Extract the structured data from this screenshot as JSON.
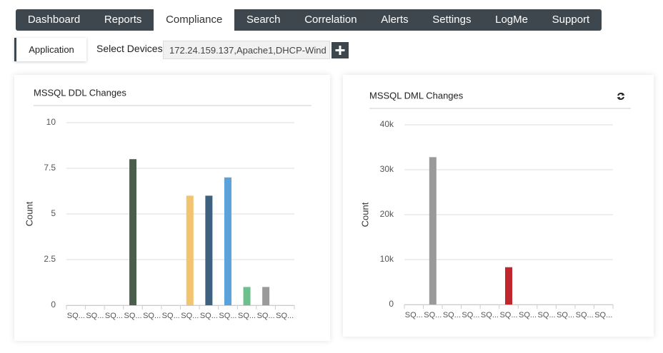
{
  "nav": {
    "tabs": [
      "Dashboard",
      "Reports",
      "Compliance",
      "Search",
      "Correlation",
      "Alerts",
      "Settings",
      "LogMe",
      "Support"
    ],
    "active": 2
  },
  "subnav": {
    "tab": "Application",
    "label": "Select Devices",
    "devices": "172.24.159.137,Apache1,DHCP-Wind"
  },
  "chart_data": [
    {
      "type": "bar",
      "title": "MSSQL DDL Changes",
      "y_label": "Count",
      "categories": [
        "SQ...",
        "SQ...",
        "SQ...",
        "SQ...",
        "SQ...",
        "SQ...",
        "SQ...",
        "SQ...",
        "SQ...",
        "SQ...",
        "SQ...",
        "SQ..."
      ],
      "values": [
        0,
        0,
        0,
        8,
        0,
        0,
        6,
        6,
        7,
        1,
        1,
        0
      ],
      "colors": [
        null,
        null,
        null,
        "#4b5e4e",
        null,
        null,
        "#f1c470",
        "#3e6180",
        "#5ba2da",
        "#6cc08c",
        "#9a9a9a",
        null
      ],
      "ylim": [
        0,
        10
      ],
      "yticks": [
        0,
        2.5,
        5,
        7.5,
        10
      ],
      "grid": true
    },
    {
      "type": "bar",
      "title": "MSSQL DML Changes",
      "y_label": "Count",
      "categories": [
        "SQ...",
        "SQ...",
        "SQ...",
        "SQ...",
        "SQ...",
        "SQ...",
        "SQ...",
        "SQ...",
        "SQ...",
        "SQ...",
        "SQ..."
      ],
      "values": [
        0,
        32800,
        0,
        0,
        0,
        8300,
        0,
        0,
        0,
        0,
        0
      ],
      "colors": [
        null,
        "#9a9a9a",
        null,
        null,
        null,
        "#c0262c",
        null,
        null,
        null,
        null,
        null
      ],
      "ylim": [
        0,
        40000
      ],
      "yticks": [
        0,
        {
          "value": 10000,
          "label": "10k"
        },
        {
          "value": 20000,
          "label": "20k"
        },
        {
          "value": 30000,
          "label": "30k"
        },
        {
          "value": 40000,
          "label": "40k"
        }
      ],
      "grid": true
    }
  ]
}
